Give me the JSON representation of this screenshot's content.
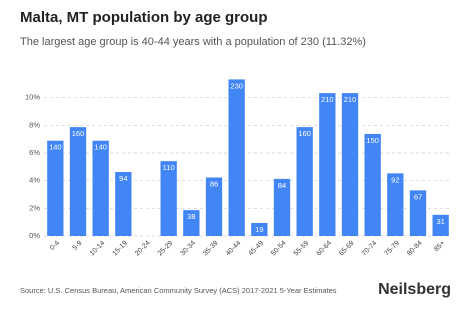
{
  "chart_data": {
    "type": "bar",
    "title": "Malta, MT population by age group",
    "subtitle": "The largest age group is 40-44 years with a population of 230 (11.32%)",
    "categories": [
      "0-4",
      "5-9",
      "10-14",
      "15-19",
      "20-24",
      "25-29",
      "30-34",
      "35-39",
      "40-44",
      "45-49",
      "50-54",
      "55-59",
      "60-64",
      "65-69",
      "70-74",
      "75-79",
      "80-84",
      "85+"
    ],
    "values": [
      6.89,
      7.87,
      6.89,
      4.63,
      0,
      5.41,
      1.87,
      4.23,
      11.32,
      0.94,
      4.13,
      7.87,
      10.33,
      10.33,
      7.38,
      4.53,
      3.3,
      1.53
    ],
    "population": [
      140,
      160,
      140,
      94,
      null,
      110,
      38,
      86,
      230,
      19,
      84,
      160,
      210,
      210,
      150,
      92,
      67,
      31
    ],
    "color": "#4285f4",
    "ylim": [
      0,
      12
    ],
    "yticks": [
      {
        "value": 0,
        "label": "0%"
      },
      {
        "value": 2,
        "label": "2%"
      },
      {
        "value": 4,
        "label": "4%"
      },
      {
        "value": 6,
        "label": "6%"
      },
      {
        "value": 8,
        "label": "8%"
      },
      {
        "value": 10,
        "label": "10%"
      }
    ],
    "grid": true,
    "source": "Source: U.S. Census Bureau, American Community Survey (ACS) 2017-2021 5-Year Estimates",
    "brand": "Neilsberg"
  }
}
